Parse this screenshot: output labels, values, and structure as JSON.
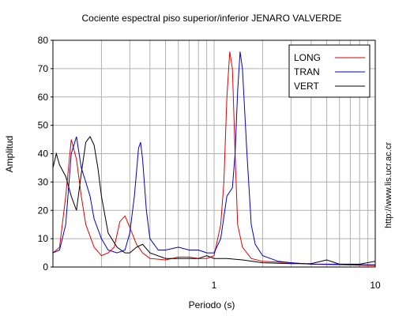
{
  "chart_data": {
    "type": "line",
    "title": "Cociente espectral piso superior/inferior  JENARO VALVERDE",
    "xlabel": "Periodo (s)",
    "ylabel": "Amplitud",
    "x_scale": "log",
    "xlim": [
      0.1,
      10
    ],
    "ylim": [
      0,
      80
    ],
    "x_ticks": [
      {
        "v": 1,
        "label": "1"
      },
      {
        "v": 10,
        "label": "10"
      }
    ],
    "y_ticks": [
      0,
      10,
      20,
      30,
      40,
      50,
      60,
      70,
      80
    ],
    "grid": true,
    "legend_position": "top-right",
    "series": [
      {
        "name": "LONG",
        "color": "#e00000",
        "points": [
          [
            0.1,
            5
          ],
          [
            0.11,
            7
          ],
          [
            0.12,
            25
          ],
          [
            0.13,
            45
          ],
          [
            0.14,
            38
          ],
          [
            0.15,
            25
          ],
          [
            0.16,
            15
          ],
          [
            0.18,
            7
          ],
          [
            0.2,
            4
          ],
          [
            0.22,
            5
          ],
          [
            0.24,
            7
          ],
          [
            0.26,
            16
          ],
          [
            0.28,
            18
          ],
          [
            0.3,
            14
          ],
          [
            0.33,
            8
          ],
          [
            0.36,
            5
          ],
          [
            0.4,
            3
          ],
          [
            0.5,
            2.5
          ],
          [
            0.6,
            3.5
          ],
          [
            0.7,
            3.5
          ],
          [
            0.8,
            3
          ],
          [
            0.9,
            3
          ],
          [
            1.0,
            4
          ],
          [
            1.1,
            15
          ],
          [
            1.15,
            30
          ],
          [
            1.2,
            60
          ],
          [
            1.25,
            76
          ],
          [
            1.3,
            70
          ],
          [
            1.35,
            40
          ],
          [
            1.4,
            15
          ],
          [
            1.5,
            7
          ],
          [
            1.7,
            3
          ],
          [
            2,
            2
          ],
          [
            3,
            1.5
          ],
          [
            4,
            1
          ],
          [
            6,
            0.8
          ],
          [
            8,
            0.6
          ],
          [
            10,
            0.5
          ]
        ]
      },
      {
        "name": "TRAN",
        "color": "#0000cc",
        "points": [
          [
            0.1,
            5
          ],
          [
            0.11,
            6
          ],
          [
            0.12,
            15
          ],
          [
            0.13,
            40
          ],
          [
            0.14,
            46
          ],
          [
            0.15,
            35
          ],
          [
            0.16,
            30
          ],
          [
            0.17,
            25
          ],
          [
            0.18,
            17
          ],
          [
            0.2,
            10
          ],
          [
            0.22,
            6
          ],
          [
            0.25,
            5
          ],
          [
            0.28,
            6
          ],
          [
            0.3,
            12
          ],
          [
            0.32,
            25
          ],
          [
            0.34,
            42
          ],
          [
            0.35,
            44
          ],
          [
            0.36,
            38
          ],
          [
            0.38,
            20
          ],
          [
            0.4,
            10
          ],
          [
            0.45,
            6
          ],
          [
            0.5,
            6
          ],
          [
            0.6,
            7
          ],
          [
            0.7,
            6
          ],
          [
            0.8,
            6
          ],
          [
            0.9,
            5
          ],
          [
            1.0,
            5
          ],
          [
            1.1,
            10
          ],
          [
            1.2,
            25
          ],
          [
            1.3,
            28
          ],
          [
            1.35,
            40
          ],
          [
            1.4,
            62
          ],
          [
            1.45,
            76
          ],
          [
            1.5,
            70
          ],
          [
            1.6,
            40
          ],
          [
            1.7,
            15
          ],
          [
            1.8,
            8
          ],
          [
            2,
            4
          ],
          [
            2.5,
            2
          ],
          [
            3,
            1.5
          ],
          [
            4,
            1
          ],
          [
            6,
            1
          ],
          [
            8,
            0.8
          ],
          [
            10,
            0.8
          ]
        ]
      },
      {
        "name": "VERT",
        "color": "#000000",
        "points": [
          [
            0.1,
            35
          ],
          [
            0.105,
            40
          ],
          [
            0.11,
            36
          ],
          [
            0.12,
            32
          ],
          [
            0.13,
            25
          ],
          [
            0.14,
            20
          ],
          [
            0.15,
            33
          ],
          [
            0.16,
            44
          ],
          [
            0.17,
            46
          ],
          [
            0.18,
            43
          ],
          [
            0.19,
            35
          ],
          [
            0.2,
            25
          ],
          [
            0.22,
            12
          ],
          [
            0.25,
            7
          ],
          [
            0.28,
            5
          ],
          [
            0.3,
            5
          ],
          [
            0.33,
            7
          ],
          [
            0.36,
            8
          ],
          [
            0.4,
            5
          ],
          [
            0.5,
            3
          ],
          [
            0.6,
            3
          ],
          [
            0.7,
            3
          ],
          [
            0.8,
            3
          ],
          [
            0.9,
            4
          ],
          [
            1.0,
            3
          ],
          [
            1.2,
            3
          ],
          [
            1.5,
            2.5
          ],
          [
            2,
            1.5
          ],
          [
            3,
            1.2
          ],
          [
            4,
            1.2
          ],
          [
            5,
            2.5
          ],
          [
            6,
            1
          ],
          [
            8,
            1
          ],
          [
            10,
            2
          ]
        ]
      }
    ]
  },
  "watermark_url": "http://www.lis.ucr.ac.cr"
}
